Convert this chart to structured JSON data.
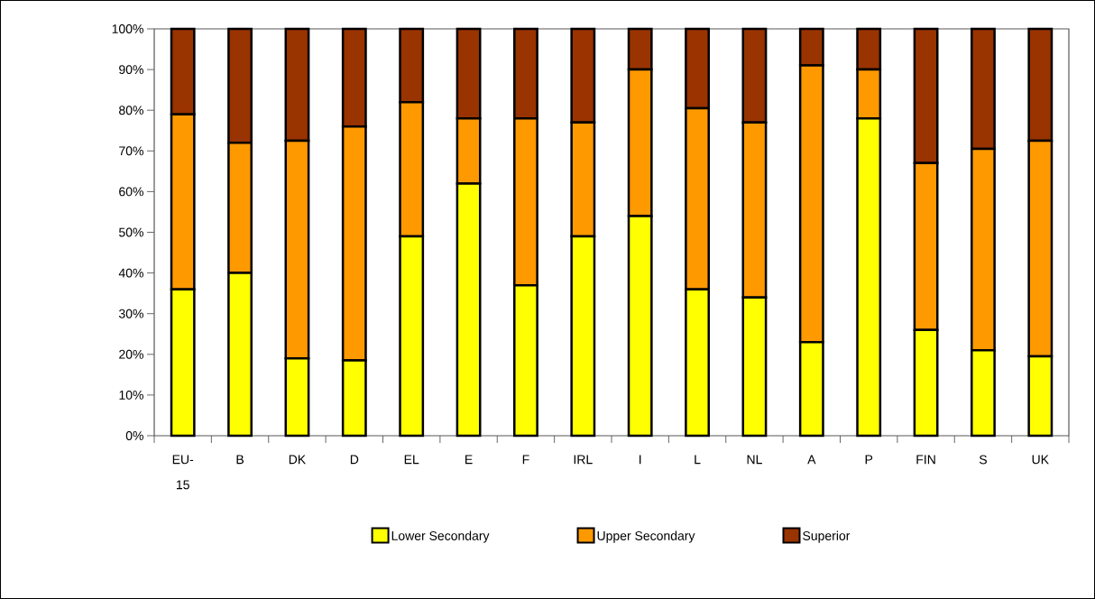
{
  "chart_data": {
    "type": "bar",
    "stacked": true,
    "legend": "bottom",
    "categories": [
      "EU-15",
      "B",
      "DK",
      "D",
      "EL",
      "E",
      "F",
      "IRL",
      "I",
      "L",
      "NL",
      "A",
      "P",
      "FIN",
      "S",
      "UK"
    ],
    "series": [
      {
        "name": "Lower Secondary",
        "color": "#ffff00",
        "values": [
          36,
          40,
          19,
          18.5,
          49,
          62,
          37,
          49,
          54,
          36,
          34,
          23,
          78,
          26,
          21,
          19.5
        ]
      },
      {
        "name": "Upper Secondary",
        "color": "#ff9900",
        "values": [
          43,
          32,
          53.5,
          57.5,
          33,
          16,
          41,
          28,
          36,
          44.5,
          43,
          68,
          12,
          41,
          49.5,
          53
        ]
      },
      {
        "name": "Superior",
        "color": "#993300",
        "values": [
          21,
          28,
          27.5,
          24,
          18,
          22,
          22,
          23,
          10,
          19.5,
          23,
          9,
          10,
          33,
          29.5,
          27.5
        ]
      }
    ],
    "ylim": [
      0,
      100
    ],
    "yticks": [
      {
        "value": 0,
        "label": "0%"
      },
      {
        "value": 10,
        "label": "10%"
      },
      {
        "value": 20,
        "label": "20%"
      },
      {
        "value": 30,
        "label": "30%"
      },
      {
        "value": 40,
        "label": "40%"
      },
      {
        "value": 50,
        "label": "50%"
      },
      {
        "value": 60,
        "label": "60%"
      },
      {
        "value": 70,
        "label": "70%"
      },
      {
        "value": 80,
        "label": "80%"
      },
      {
        "value": 90,
        "label": "90%"
      },
      {
        "value": 100,
        "label": "100%"
      }
    ]
  }
}
